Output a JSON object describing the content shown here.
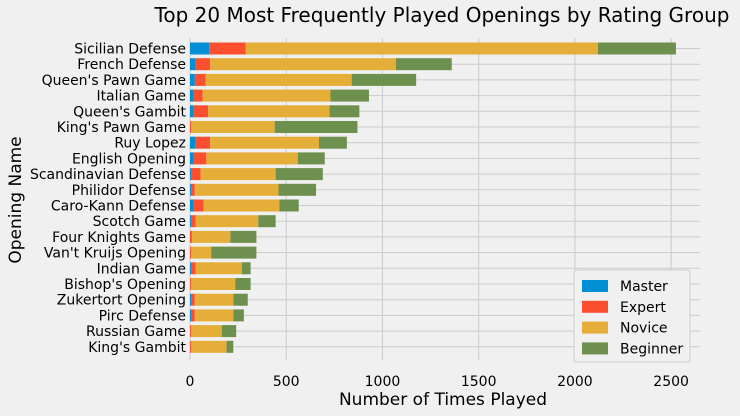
{
  "chart_data": {
    "type": "bar",
    "orientation": "horizontal",
    "stacked": true,
    "title": "Top 20 Most Frequently Played Openings by Rating Group",
    "xlabel": "Number of Times Played",
    "ylabel": "Opening Name",
    "xlim": [
      0,
      2650
    ],
    "xticks": [
      0,
      500,
      1000,
      1500,
      2000,
      2500
    ],
    "grid": true,
    "legend_position": "bottom-right",
    "categories": [
      "Sicilian Defense",
      "French Defense",
      "Queen's Pawn Game",
      "Italian Game",
      "Queen's Gambit",
      "King's Pawn Game",
      "Ruy Lopez",
      "English Opening",
      "Scandinavian Defense",
      "Philidor Defense",
      "Caro-Kann Defense",
      "Scotch Game",
      "Four Knights Game",
      "Van't Kruijs Opening",
      "Indian Game",
      "Bishop's Opening",
      "Zukertort Opening",
      "Pirc Defense",
      "Russian Game",
      "King's Gambit"
    ],
    "series": [
      {
        "name": "Master",
        "color": "#008fd5",
        "values": [
          100,
          30,
          25,
          20,
          20,
          0,
          30,
          20,
          5,
          5,
          20,
          5,
          0,
          0,
          5,
          0,
          5,
          5,
          0,
          0
        ]
      },
      {
        "name": "Expert",
        "color": "#fc4f30",
        "values": [
          190,
          75,
          55,
          45,
          75,
          5,
          75,
          65,
          50,
          20,
          50,
          25,
          10,
          5,
          25,
          5,
          20,
          20,
          5,
          5
        ]
      },
      {
        "name": "Novice",
        "color": "#e5ae38",
        "values": [
          1830,
          965,
          760,
          665,
          630,
          435,
          565,
          475,
          390,
          435,
          395,
          325,
          200,
          105,
          240,
          230,
          200,
          200,
          160,
          185
        ]
      },
      {
        "name": "Beginner",
        "color": "#6d904f",
        "values": [
          405,
          290,
          335,
          200,
          155,
          430,
          145,
          140,
          245,
          195,
          100,
          90,
          135,
          235,
          45,
          80,
          75,
          55,
          75,
          35
        ]
      }
    ]
  }
}
